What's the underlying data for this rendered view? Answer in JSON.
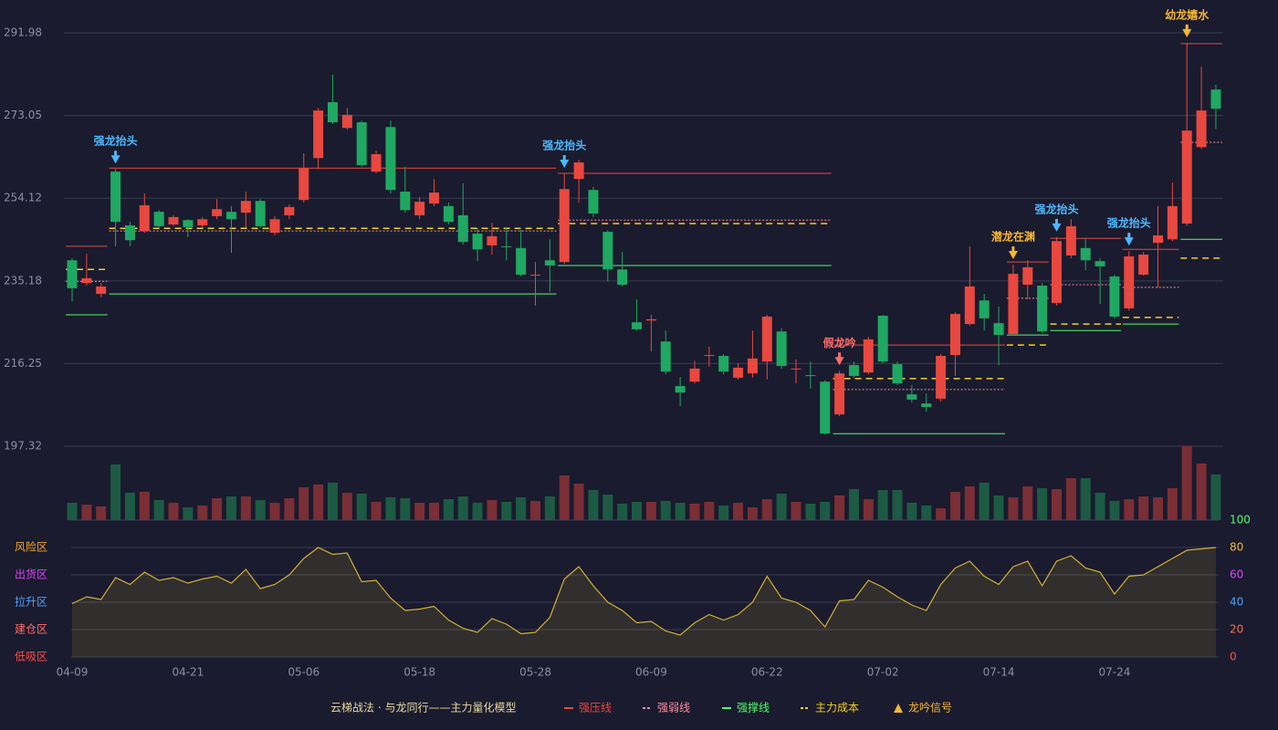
{
  "chart_data": {
    "type": "candlestick",
    "title": "云梯战法 · 与龙同行——主力量化模型",
    "categories": [
      "04-09",
      null,
      null,
      null,
      null,
      null,
      null,
      null,
      "04-21",
      null,
      null,
      null,
      null,
      null,
      null,
      null,
      "05-06",
      null,
      null,
      null,
      null,
      null,
      null,
      null,
      "05-18",
      null,
      null,
      null,
      null,
      null,
      null,
      null,
      "05-28",
      null,
      null,
      null,
      null,
      null,
      null,
      null,
      "06-09",
      null,
      null,
      null,
      null,
      null,
      null,
      null,
      "06-22",
      null,
      null,
      null,
      null,
      null,
      null,
      null,
      "07-02",
      null,
      null,
      null,
      null,
      null,
      null,
      null,
      "07-14",
      null,
      null,
      null,
      null,
      null,
      null,
      null,
      "07-24",
      null,
      null,
      null,
      null,
      null,
      null,
      null
    ],
    "open": [
      239.9,
      234.7,
      232.2,
      260.2,
      247.9,
      246.6,
      251.0,
      248.1,
      249.1,
      247.9,
      250.0,
      251.0,
      250.8,
      253.5,
      246.2,
      250.2,
      253.7,
      263.3,
      276.1,
      270.2,
      271.5,
      260.2,
      270.4,
      255.6,
      250.2,
      252.9,
      252.3,
      250.2,
      246.0,
      243.3,
      243.1,
      242.7,
      236.4,
      239.9,
      239.5,
      258.5,
      256.0,
      246.4,
      237.8,
      225.7,
      226.1,
      221.3,
      211.1,
      212.1,
      218.0,
      218.0,
      213.0,
      214.0,
      216.7,
      223.6,
      214.9,
      213.6,
      212.1,
      204.6,
      215.9,
      214.2,
      227.2,
      216.1,
      209.2,
      207.1,
      208.2,
      218.2,
      225.3,
      230.7,
      225.5,
      223.0,
      234.3,
      234.1,
      230.1,
      241.0,
      242.7,
      239.7,
      236.2,
      228.9,
      236.6,
      243.9,
      244.7,
      248.3,
      265.8,
      279.0
    ],
    "close": [
      233.5,
      235.8,
      233.9,
      248.7,
      244.5,
      252.5,
      247.7,
      249.8,
      247.5,
      249.3,
      251.6,
      249.3,
      253.5,
      247.7,
      249.3,
      252.1,
      261.0,
      274.2,
      271.5,
      273.2,
      261.7,
      264.2,
      256.0,
      251.4,
      253.3,
      255.4,
      248.7,
      244.1,
      242.4,
      245.4,
      242.9,
      236.6,
      236.6,
      238.7,
      256.2,
      262.3,
      250.6,
      237.8,
      234.3,
      224.1,
      226.4,
      214.4,
      209.6,
      215.1,
      218.2,
      214.4,
      215.3,
      217.4,
      227.0,
      215.7,
      215.1,
      213.4,
      200.2,
      214.0,
      213.4,
      221.8,
      216.7,
      211.7,
      208.0,
      206.3,
      218.0,
      227.6,
      233.9,
      226.6,
      222.8,
      236.8,
      238.3,
      223.6,
      244.3,
      247.7,
      239.9,
      238.5,
      227.0,
      240.8,
      241.2,
      245.6,
      252.3,
      269.6,
      274.2,
      274.6
    ],
    "high": [
      240.4,
      241.4,
      234.7,
      260.8,
      248.7,
      255.2,
      251.4,
      250.2,
      249.3,
      249.8,
      253.9,
      252.3,
      255.6,
      253.9,
      250.0,
      252.7,
      264.4,
      274.8,
      282.4,
      274.8,
      271.9,
      265.0,
      271.9,
      261.3,
      254.4,
      258.5,
      253.1,
      257.5,
      247.3,
      248.5,
      247.3,
      246.8,
      239.5,
      244.7,
      259.8,
      262.9,
      256.7,
      246.8,
      241.8,
      230.9,
      227.4,
      223.8,
      213.2,
      216.9,
      220.1,
      218.4,
      216.3,
      223.8,
      227.4,
      224.3,
      217.2,
      216.7,
      212.4,
      214.6,
      216.7,
      222.4,
      227.4,
      216.7,
      211.3,
      209.4,
      218.4,
      228.0,
      243.1,
      232.2,
      229.3,
      238.9,
      239.9,
      234.7,
      245.2,
      249.3,
      244.7,
      240.4,
      236.6,
      242.0,
      241.8,
      252.3,
      257.7,
      289.7,
      284.2,
      280.1
    ],
    "low": [
      230.5,
      234.1,
      231.4,
      243.1,
      243.1,
      246.2,
      247.3,
      247.7,
      245.2,
      247.3,
      249.3,
      241.6,
      247.3,
      247.3,
      245.6,
      249.3,
      253.1,
      260.8,
      271.1,
      269.8,
      261.3,
      259.8,
      255.2,
      250.8,
      249.3,
      252.3,
      248.1,
      243.5,
      239.7,
      241.2,
      239.9,
      236.2,
      229.5,
      232.6,
      239.1,
      253.1,
      249.8,
      235.1,
      233.9,
      223.8,
      219.0,
      213.8,
      206.5,
      211.7,
      215.5,
      213.8,
      212.6,
      213.0,
      212.6,
      215.1,
      211.7,
      210.5,
      200.0,
      204.2,
      213.0,
      213.8,
      216.3,
      211.3,
      207.3,
      205.2,
      207.5,
      213.4,
      224.9,
      223.8,
      215.9,
      222.6,
      230.9,
      223.2,
      229.5,
      240.4,
      237.6,
      229.9,
      226.6,
      228.4,
      236.4,
      233.7,
      244.3,
      247.7,
      265.4,
      270.0
    ],
    "up_color": "#e8483f",
    "down_color": "#1fa862",
    "ylim": [
      197.32,
      291.98
    ],
    "yticks": [
      197.32,
      216.25,
      235.18,
      254.12,
      273.05,
      291.98
    ],
    "grid": true,
    "volume": {
      "values": [
        19,
        17,
        15,
        61,
        30,
        31,
        22,
        19,
        14,
        16,
        24,
        26,
        26,
        22,
        19,
        24,
        36,
        39,
        41,
        30,
        29,
        20,
        25,
        24,
        19,
        19,
        23,
        26,
        19,
        22,
        20,
        25,
        21,
        26,
        49,
        40,
        33,
        28,
        18,
        20,
        20,
        21,
        19,
        18,
        20,
        16,
        19,
        14,
        23,
        29,
        20,
        18,
        20,
        27,
        34,
        23,
        33,
        33,
        19,
        16,
        13,
        31,
        37,
        41,
        27,
        25,
        37,
        35,
        34,
        46,
        46,
        30,
        21,
        23,
        26,
        25,
        35,
        81,
        62,
        50
      ],
      "up_color": "#7a2e35",
      "down_color": "#1d5a43"
    },
    "oscillator": {
      "values": [
        39,
        44,
        42,
        58,
        53,
        62,
        56,
        58,
        54,
        57,
        59,
        54,
        64,
        50,
        53,
        60,
        72,
        80,
        75,
        76,
        55,
        56,
        43,
        34,
        35,
        37,
        27,
        21,
        18,
        28,
        24,
        17,
        18,
        29,
        57,
        66,
        52,
        40,
        34,
        25,
        26,
        19,
        16,
        25,
        31,
        27,
        31,
        40,
        59,
        43,
        40,
        34,
        22,
        41,
        42,
        56,
        51,
        44,
        38,
        34,
        53,
        65,
        70,
        59,
        53,
        66,
        70,
        52,
        70,
        74,
        65,
        62,
        46,
        59,
        60,
        66,
        72,
        78,
        79,
        80
      ],
      "color": "#d4b030",
      "ylim": [
        0,
        100
      ],
      "yticks": [
        0,
        20,
        40,
        60,
        80,
        100
      ],
      "ytick_colors": [
        "#ff4d4d",
        "#ff6b4a",
        "#4aa3ff",
        "#e040fb",
        "#f5b731",
        "#4cff6a"
      ],
      "zones": [
        {
          "label": "风险区",
          "value": 80,
          "color": "#f5a623"
        },
        {
          "label": "出货区",
          "value": 60,
          "color": "#e040fb"
        },
        {
          "label": "拉升区",
          "value": 40,
          "color": "#4aa3ff"
        },
        {
          "label": "建仓区",
          "value": 20,
          "color": "#ff6b6b"
        },
        {
          "label": "低吸区",
          "value": 0,
          "color": "#ff4d4d"
        }
      ]
    },
    "levels": [
      {
        "name": "强压线",
        "color": "#e8483f",
        "dashed": false,
        "segments": [
          {
            "start": 0,
            "end": 2,
            "value": 243.1
          },
          {
            "start": 3,
            "end": 33,
            "value": 261.0
          },
          {
            "start": 34,
            "end": 52,
            "value": 259.8
          },
          {
            "start": 53,
            "end": 64,
            "value": 220.5
          },
          {
            "start": 65,
            "end": 67,
            "value": 239.5
          },
          {
            "start": 68,
            "end": 72,
            "value": 244.9
          },
          {
            "start": 73,
            "end": 76,
            "value": 242.4
          },
          {
            "start": 77,
            "end": 79,
            "value": 289.5
          }
        ]
      },
      {
        "name": "强弱线",
        "color": "#ff8fa0",
        "dashed": true,
        "segments": [
          {
            "start": 0,
            "end": 2,
            "value": 235.1
          },
          {
            "start": 3,
            "end": 33,
            "value": 246.6
          },
          {
            "start": 34,
            "end": 52,
            "value": 249.1
          },
          {
            "start": 53,
            "end": 64,
            "value": 210.3
          },
          {
            "start": 65,
            "end": 67,
            "value": 231.2
          },
          {
            "start": 68,
            "end": 72,
            "value": 234.3
          },
          {
            "start": 73,
            "end": 76,
            "value": 233.7
          },
          {
            "start": 77,
            "end": 79,
            "value": 266.9
          }
        ]
      },
      {
        "name": "强撑线",
        "color": "#4cff6a",
        "dashed": false,
        "segments": [
          {
            "start": 0,
            "end": 2,
            "value": 227.4
          },
          {
            "start": 3,
            "end": 33,
            "value": 232.2
          },
          {
            "start": 34,
            "end": 52,
            "value": 238.7
          },
          {
            "start": 53,
            "end": 64,
            "value": 200.2
          },
          {
            "start": 65,
            "end": 67,
            "value": 222.8
          },
          {
            "start": 68,
            "end": 72,
            "value": 223.8
          },
          {
            "start": 73,
            "end": 76,
            "value": 225.3
          },
          {
            "start": 77,
            "end": 79,
            "value": 244.7
          }
        ]
      },
      {
        "name": "主力成本",
        "color": "#f5d020",
        "dashed": true,
        "segments": [
          {
            "start": 0,
            "end": 2,
            "value": 237.8
          },
          {
            "start": 3,
            "end": 33,
            "value": 247.2
          },
          {
            "start": 34,
            "end": 52,
            "value": 248.3
          },
          {
            "start": 53,
            "end": 64,
            "value": 212.8
          },
          {
            "start": 65,
            "end": 67,
            "value": 220.5
          },
          {
            "start": 68,
            "end": 72,
            "value": 225.3
          },
          {
            "start": 73,
            "end": 76,
            "value": 226.8
          },
          {
            "start": 77,
            "end": 79,
            "value": 240.4
          }
        ]
      }
    ],
    "signal_legend": {
      "name": "龙吟信号",
      "color": "#f5b731"
    },
    "signals": [
      {
        "label": "强龙抬头",
        "index": 3,
        "color": "#4db8ff"
      },
      {
        "label": "强龙抬头",
        "index": 34,
        "color": "#4db8ff"
      },
      {
        "label": "假龙吟",
        "index": 53,
        "color": "#ff6b6b"
      },
      {
        "label": "潜龙在渊",
        "index": 65,
        "color": "#f5b731"
      },
      {
        "label": "强龙抬头",
        "index": 68,
        "color": "#4db8ff"
      },
      {
        "label": "强龙抬头",
        "index": 73,
        "color": "#4db8ff"
      },
      {
        "label": "幼龙嬉水",
        "index": 77,
        "color": "#f5b731"
      }
    ]
  }
}
